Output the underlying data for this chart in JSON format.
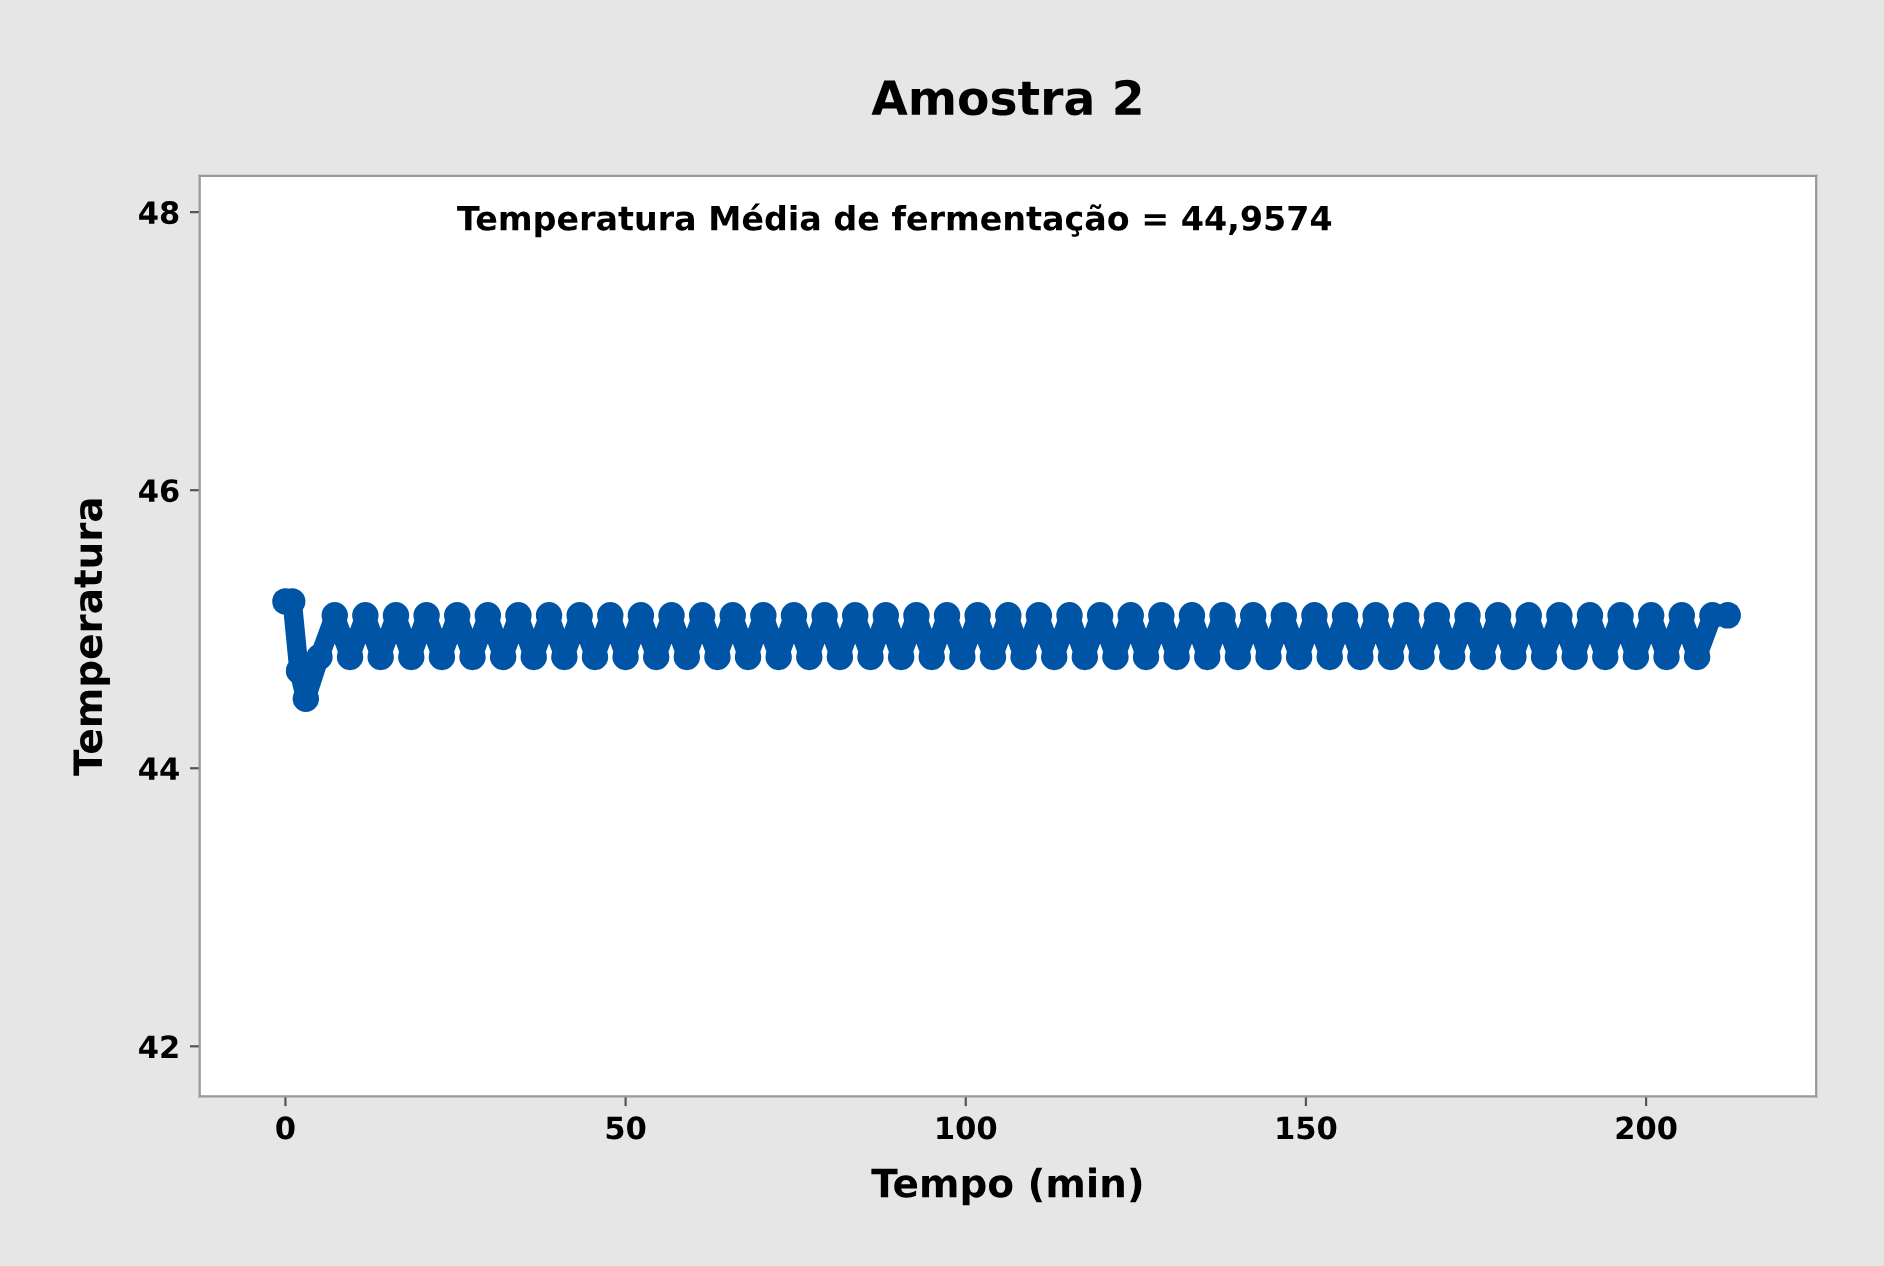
{
  "chart_data": {
    "type": "line",
    "title": "Amostra 2",
    "xlabel": "Tempo (min)",
    "ylabel": "Temperatura",
    "annotations": [
      "Temperatura Média de fermentação = 44,9574"
    ],
    "marker": "circle",
    "line_style": "solid",
    "grid": false,
    "xlim": [
      -12.6,
      225
    ],
    "xticks": [
      0,
      50,
      100,
      150,
      200
    ],
    "ylim": [
      41.64,
      48.26
    ],
    "yticks": [
      42,
      44,
      46,
      48
    ],
    "series": [
      {
        "color": "#0054a6",
        "x": [
          0,
          1,
          2,
          3,
          5,
          7.25,
          9.5,
          11.75,
          14,
          16.25,
          18.5,
          20.75,
          23,
          25.25,
          27.5,
          29.75,
          32,
          34.25,
          36.5,
          38.75,
          41,
          43.25,
          45.5,
          47.75,
          50,
          52.25,
          54.5,
          56.75,
          59,
          61.25,
          63.5,
          65.75,
          68,
          70.25,
          72.5,
          74.75,
          77,
          79.25,
          81.5,
          83.75,
          86,
          88.25,
          90.5,
          92.75,
          95,
          97.25,
          99.5,
          101.75,
          104,
          106.25,
          108.5,
          110.75,
          113,
          115.25,
          117.5,
          119.75,
          122,
          124.25,
          126.5,
          128.75,
          131,
          133.25,
          135.5,
          137.75,
          140,
          142.25,
          144.5,
          146.75,
          149,
          151.25,
          153.5,
          155.75,
          158,
          160.25,
          162.5,
          164.75,
          167,
          169.25,
          171.5,
          173.75,
          176,
          178.25,
          180.5,
          182.75,
          185,
          187.25,
          189.5,
          191.75,
          194,
          196.25,
          198.5,
          200.75,
          203,
          205.25,
          207.5,
          209.75,
          212
        ],
        "values": [
          45.2,
          45.2,
          44.7,
          44.5,
          44.8,
          45.1,
          44.8,
          45.1,
          44.8,
          45.1,
          44.8,
          45.1,
          44.8,
          45.1,
          44.8,
          45.1,
          44.8,
          45.1,
          44.8,
          45.1,
          44.8,
          45.1,
          44.8,
          45.1,
          44.8,
          45.1,
          44.8,
          45.1,
          44.8,
          45.1,
          44.8,
          45.1,
          44.8,
          45.1,
          44.8,
          45.1,
          44.8,
          45.1,
          44.8,
          45.1,
          44.8,
          45.1,
          44.8,
          45.1,
          44.8,
          45.1,
          44.8,
          45.1,
          44.8,
          45.1,
          44.8,
          45.1,
          44.8,
          45.1,
          44.8,
          45.1,
          44.8,
          45.1,
          44.8,
          45.1,
          44.8,
          45.1,
          44.8,
          45.1,
          44.8,
          45.1,
          44.8,
          45.1,
          44.8,
          45.1,
          44.8,
          45.1,
          44.8,
          45.1,
          44.8,
          45.1,
          44.8,
          45.1,
          44.8,
          45.1,
          44.8,
          45.1,
          44.8,
          45.1,
          44.8,
          45.1,
          44.8,
          45.1,
          44.8,
          45.1,
          44.8,
          45.1,
          44.8,
          45.1,
          44.8,
          45.1,
          45.1
        ]
      }
    ]
  }
}
